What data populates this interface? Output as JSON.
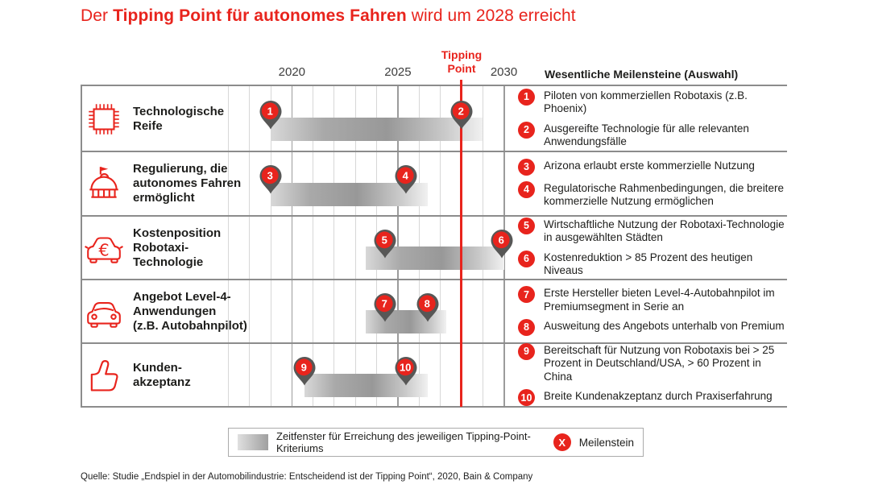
{
  "title": {
    "prefix": "Der ",
    "bold": "Tipping Point für autonomes Fahren",
    "suffix": " wird um 2028 erreicht"
  },
  "header": {
    "tipping_line1": "Tipping",
    "tipping_line2": "Point",
    "milestones_heading": "Wesentliche Meilensteine (Auswahl)"
  },
  "colors": {
    "red": "#e8241d",
    "pin_gray": "#575756",
    "bar_gray_mid": "#989898",
    "gridline_light": "#d7d7d7",
    "gridline_major": "#9b9b9b"
  },
  "chart_data": {
    "type": "timeline-gantt",
    "title": "Der Tipping Point für autonomes Fahren wird um 2028 erreicht",
    "axis": {
      "start_year": 2017,
      "end_year": 2030,
      "tick_years": [
        2020,
        2025,
        2030
      ],
      "tick_labels": [
        "2020",
        "2025",
        "2030"
      ],
      "tipping_point_year": 2028,
      "grid": "annual"
    },
    "rows": [
      {
        "label": "Technologische\nReife",
        "icon": "chip-icon",
        "bar": [
          2019,
          2029
        ],
        "markers": [
          {
            "n": 1,
            "year": 2019
          },
          {
            "n": 2,
            "year": 2028
          }
        ],
        "milestones": [
          {
            "n": 1,
            "text": "Piloten von kommerziellen Robotaxis (z.B. Phoenix)"
          },
          {
            "n": 2,
            "text": "Ausgereifte Technologie für alle relevanten Anwendungsfälle"
          }
        ]
      },
      {
        "label": "Regulierung, die\nautonomes Fahren\nermöglicht",
        "icon": "government-building-icon",
        "bar": [
          2019,
          2026.4
        ],
        "markers": [
          {
            "n": 3,
            "year": 2019
          },
          {
            "n": 4,
            "year": 2025.4
          }
        ],
        "milestones": [
          {
            "n": 3,
            "text": "Arizona erlaubt erste kommerzielle Nutzung"
          },
          {
            "n": 4,
            "text": "Regulatorische Rahmenbedingungen, die breitere kommerzielle Nutzung ermöglichen"
          }
        ]
      },
      {
        "label": "Kostenposition\nRobotaxi-\nTechnologie",
        "icon": "car-euro-icon",
        "bar": [
          2023.5,
          2030
        ],
        "markers": [
          {
            "n": 5,
            "year": 2024.4
          },
          {
            "n": 6,
            "year": 2029.9
          }
        ],
        "milestones": [
          {
            "n": 5,
            "text": "Wirtschaftliche Nutzung der Robotaxi-Technologie in ausgewählten Städten"
          },
          {
            "n": 6,
            "text": "Kostenreduktion > 85 Prozent des heutigen Niveaus"
          }
        ]
      },
      {
        "label": "Angebot Level-4-\nAnwendungen\n(z.B. Autobahnpilot)",
        "icon": "car-icon",
        "bar": [
          2023.5,
          2027.3
        ],
        "markers": [
          {
            "n": 7,
            "year": 2024.4
          },
          {
            "n": 8,
            "year": 2026.4
          }
        ],
        "milestones": [
          {
            "n": 7,
            "text": "Erste Hersteller bieten Level-4-Autobahnpilot im Premiumsegment in Serie an"
          },
          {
            "n": 8,
            "text": "Ausweitung des Angebots unterhalb von Premium"
          }
        ]
      },
      {
        "label": "Kunden-\nakzeptanz",
        "icon": "thumbs-up-icon",
        "bar": [
          2020.6,
          2026.4
        ],
        "markers": [
          {
            "n": 9,
            "year": 2020.6
          },
          {
            "n": 10,
            "year": 2025.4
          }
        ],
        "milestones": [
          {
            "n": 9,
            "text": "Bereitschaft für Nutzung von Robotaxis bei > 25 Prozent in Deutschland/USA, > 60 Prozent in China"
          },
          {
            "n": 10,
            "text": "Breite Kundenakzeptanz durch Praxiserfahrung"
          }
        ]
      }
    ]
  },
  "legend": {
    "window_label": "Zeitfenster für Erreichung des jeweiligen Tipping-Point-Kriteriums",
    "milestone_symbol": "X",
    "milestone_label": "Meilenstein"
  },
  "source": "Quelle: Studie „Endspiel in der Automobilindustrie: Entscheidend ist der Tipping Point“, 2020, Bain & Company"
}
